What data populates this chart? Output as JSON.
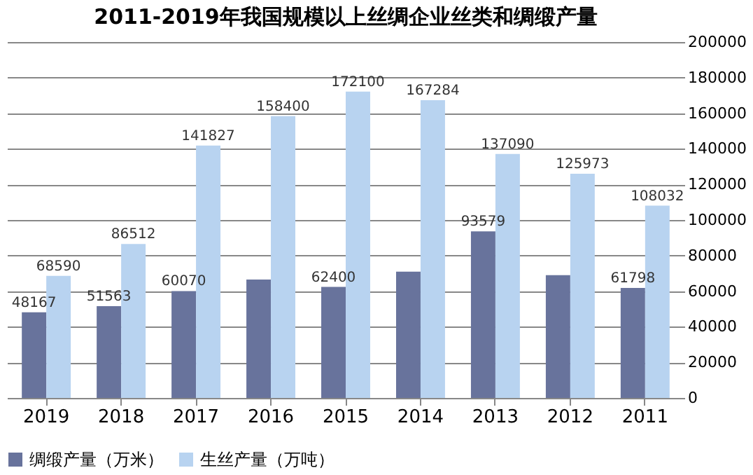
{
  "chart_data": {
    "type": "bar",
    "title": "2011-2019年我国规模以上丝绸企业丝类和绸缎产量",
    "categories": [
      "2019",
      "2018",
      "2017",
      "2016",
      "2015",
      "2014",
      "2013",
      "2012",
      "2011"
    ],
    "series": [
      {
        "name": "绸缎产量（万米）",
        "color": "#68739c",
        "values": [
          48167,
          51563,
          60070,
          66500,
          62400,
          71000,
          93579,
          69000,
          61798
        ],
        "value_labels": [
          "48167",
          "51563",
          "60070",
          null,
          "62400",
          null,
          "93579",
          null,
          "61798"
        ]
      },
      {
        "name": "生丝产量（万吨）",
        "color": "#b8d3f0",
        "values": [
          68590,
          86512,
          141827,
          158400,
          172100,
          167284,
          137090,
          125973,
          108032
        ],
        "value_labels": [
          "68590",
          "86512",
          "141827",
          "158400",
          "172100",
          "167284",
          "137090",
          "125973",
          "108032"
        ]
      }
    ],
    "ylim": [
      0,
      200000
    ],
    "yticks": [
      0,
      20000,
      40000,
      60000,
      80000,
      100000,
      120000,
      140000,
      160000,
      180000,
      200000
    ],
    "grid": "y",
    "legend": "bottom"
  }
}
